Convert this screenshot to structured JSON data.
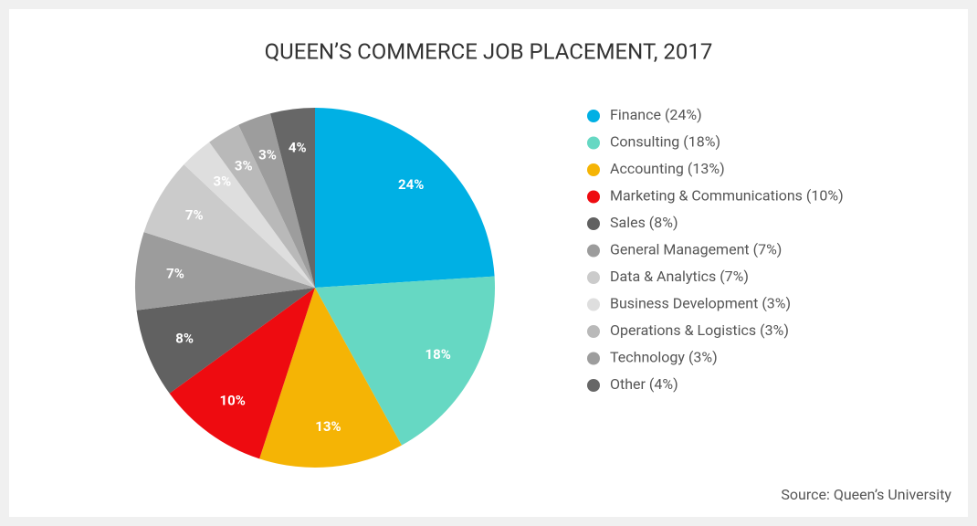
{
  "chart_data": {
    "type": "pie",
    "title": "QUEEN’S COMMERCE JOB PLACEMENT, 2017",
    "categories": [
      "Finance (24%)",
      "Consulting (18%)",
      "Accounting (13%)",
      "Marketing & Communications (10%)",
      "Sales (8%)",
      "General Management (7%)",
      "Data & Analytics (7%)",
      "Business Development (3%)",
      "Operations & Logistics (3%)",
      "Technology (3%)",
      "Other (4%)"
    ],
    "values": [
      24,
      18,
      13,
      10,
      8,
      7,
      7,
      3,
      3,
      3,
      4
    ],
    "value_labels": [
      "24%",
      "18%",
      "13%",
      "10%",
      "8%",
      "7%",
      "7%",
      "3%",
      "3%",
      "3%",
      "4%"
    ],
    "colors": [
      "#00b0e4",
      "#66d8c3",
      "#f5b405",
      "#ee0b10",
      "#616161",
      "#9c9c9c",
      "#cbcbcb",
      "#dedede",
      "#b9b9b9",
      "#9d9d9d",
      "#676767"
    ],
    "legend": "right",
    "source": "Source: Queen’s University"
  }
}
